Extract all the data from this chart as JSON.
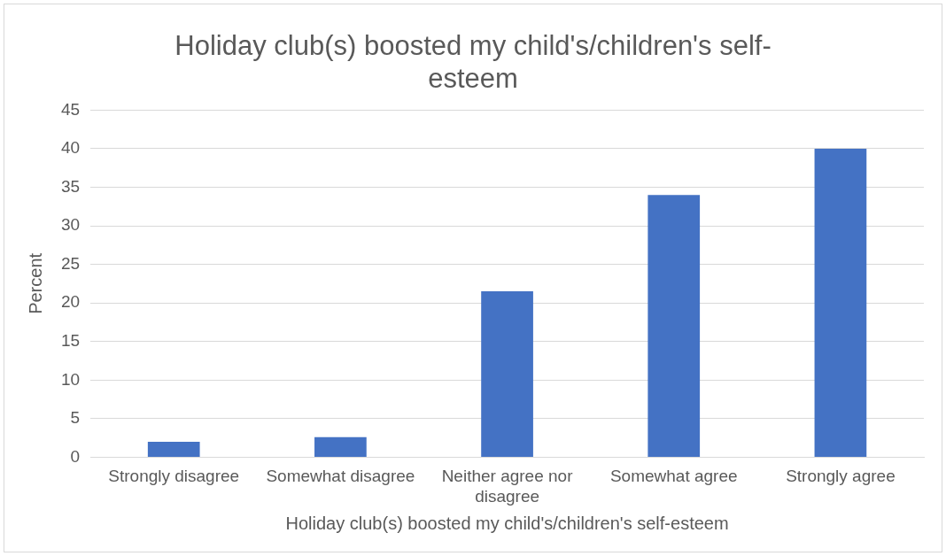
{
  "chart_data": {
    "type": "bar",
    "title": "Holiday club(s) boosted my child's/children's self-esteem",
    "xlabel": "Holiday club(s) boosted my child's/children's self-esteem",
    "ylabel": "Percent",
    "categories": [
      "Strongly disagree",
      "Somewhat disagree",
      "Neither agree nor disagree",
      "Somewhat agree",
      "Strongly agree"
    ],
    "values": [
      2,
      2.6,
      21.5,
      34,
      40
    ],
    "color": "#4472c4",
    "ylim": [
      0,
      45
    ],
    "yticks": [
      0,
      5,
      10,
      15,
      20,
      25,
      30,
      35,
      40,
      45
    ],
    "grid": "y",
    "legend": false
  }
}
